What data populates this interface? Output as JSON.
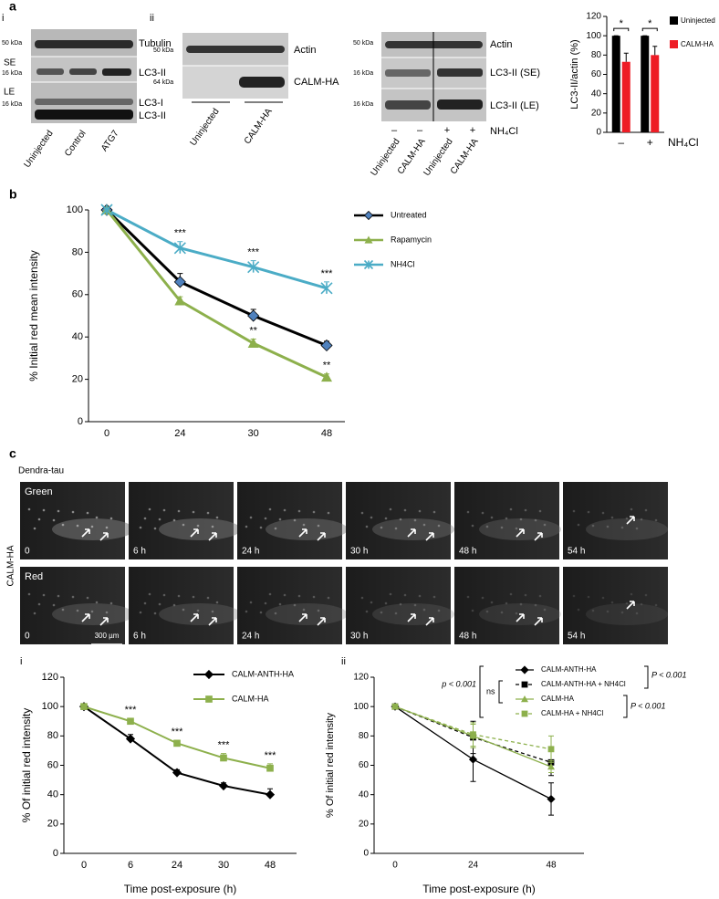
{
  "panel_labels": [
    "a",
    "b",
    "c"
  ],
  "blots": [
    {
      "label": "i",
      "kda": [
        "50 kDa",
        "16 kDa",
        "16 kDa"
      ],
      "side_labels": [
        "SE",
        "LE"
      ],
      "band_labels": [
        "Tubulin",
        "LC3-II",
        "LC3-I",
        "LC3-II"
      ],
      "lane_labels": [
        "Uninjected",
        "Control",
        "ATG7"
      ]
    },
    {
      "label": "ii",
      "kda": [
        "50 kDa",
        "64 kDa"
      ],
      "band_labels": [
        "Actin",
        "CALM-HA"
      ],
      "group_labels": [
        "Uninjected",
        "CALM-HA"
      ]
    },
    {
      "kda": [
        "50 kDa",
        "16 kDa",
        "16 kDa"
      ],
      "band_labels": [
        "Actin",
        "LC3-II (SE)",
        "LC3-II (LE)"
      ],
      "treatment": [
        "–",
        "–",
        "+",
        "+"
      ],
      "treatment_label": "NH₄Cl",
      "lane_labels": [
        "Uninjected",
        "CALM-HA",
        "Uninjected",
        "CALM-HA"
      ]
    }
  ],
  "microscopy": {
    "title": "Dendra-tau",
    "side_label": "CALM-HA",
    "rows": [
      "Green",
      "Red"
    ],
    "times": [
      "0",
      "6 h",
      "24 h",
      "30 h",
      "48 h",
      "54 h"
    ],
    "scale_bar": "300 µm"
  },
  "chart_data": [
    {
      "type": "bar",
      "ylabel": "LC3-II/actin (%)",
      "xlabel": "NH₄Cl",
      "categories": [
        "–",
        "+"
      ],
      "series": [
        {
          "name": "Uninjected",
          "color": "#000000",
          "values": [
            100,
            100
          ],
          "errors": [
            0,
            0
          ]
        },
        {
          "name": "CALM-HA",
          "color": "#ee1c25",
          "values": [
            73,
            80
          ],
          "errors": [
            9,
            9
          ]
        }
      ],
      "significance": [
        "*",
        "*"
      ],
      "ylim": [
        0,
        120
      ],
      "yticks": [
        0,
        20,
        40,
        60,
        80,
        100,
        120
      ],
      "legend": "right"
    },
    {
      "type": "line",
      "ylabel": "% Initial red mean intensity",
      "categories": [
        "0",
        "24",
        "30",
        "48"
      ],
      "error_direction": "up",
      "series": [
        {
          "name": "Untreated",
          "color": "#000000",
          "marker": "diamond",
          "marker_color": "#4f81bd",
          "values": [
            100,
            66,
            50,
            36
          ],
          "errors": [
            0,
            4,
            3,
            2
          ],
          "significance": [
            null,
            null,
            null,
            null
          ]
        },
        {
          "name": "Rapamycin",
          "color": "#8db04c",
          "marker": "triangle",
          "marker_color": "#8db04c",
          "values": [
            100,
            57,
            37,
            21
          ],
          "errors": [
            0,
            2,
            2,
            1.5
          ],
          "significance": [
            null,
            null,
            "**",
            "**"
          ]
        },
        {
          "name": "NH4Cl",
          "color": "#4bacc6",
          "marker": "x",
          "marker_color": "#4bacc6",
          "values": [
            100,
            82,
            73,
            63
          ],
          "errors": [
            0,
            3,
            3,
            3
          ],
          "significance": [
            null,
            "***",
            "***",
            "***"
          ]
        }
      ],
      "ylim": [
        0,
        100
      ],
      "yticks": [
        0,
        20,
        40,
        60,
        80,
        100
      ],
      "legend": "right"
    },
    {
      "type": "line",
      "label": "i",
      "ylabel": "% Of initial red intensity",
      "xlabel": "Time post-exposure (h)",
      "categories": [
        "0",
        "6",
        "24",
        "30",
        "48"
      ],
      "error_direction": "up",
      "series": [
        {
          "name": "CALM-ANTH-HA",
          "color": "#000000",
          "marker": "diamond",
          "marker_color": "#000000",
          "values": [
            100,
            78,
            55,
            46,
            40
          ],
          "errors": [
            0,
            3,
            2,
            2,
            4
          ],
          "significance": [
            null,
            null,
            null,
            null,
            null
          ]
        },
        {
          "name": "CALM-HA",
          "color": "#8db04c",
          "marker": "square",
          "marker_color": "#8db04c",
          "values": [
            100,
            90,
            75,
            65,
            58
          ],
          "errors": [
            0,
            2,
            2,
            3,
            3
          ],
          "significance": [
            null,
            "***",
            "***",
            "***",
            "***"
          ]
        }
      ],
      "ylim": [
        0,
        120
      ],
      "yticks": [
        0,
        20,
        40,
        60,
        80,
        100,
        120
      ],
      "legend": "upper right"
    },
    {
      "type": "line",
      "label": "ii",
      "ylabel": "% Of initial red intensity",
      "xlabel": "Time post-exposure (h)",
      "categories": [
        "0",
        "24",
        "48"
      ],
      "error_direction": "both",
      "series": [
        {
          "name": "CALM-ANTH-HA",
          "color": "#000000",
          "marker": "diamond",
          "marker_color": "#000000",
          "dashed": false,
          "values": [
            100,
            64,
            37
          ],
          "errors": [
            0,
            15,
            11
          ]
        },
        {
          "name": "CALM-ANTH-HA + NH4Cl",
          "color": "#000000",
          "marker": "square",
          "marker_color": "#000000",
          "dashed": true,
          "values": [
            100,
            79,
            62
          ],
          "errors": [
            0,
            11,
            9
          ]
        },
        {
          "name": "CALM-HA",
          "color": "#8db04c",
          "marker": "triangle",
          "marker_color": "#8db04c",
          "dashed": false,
          "values": [
            100,
            80,
            59
          ],
          "errors": [
            0,
            8,
            4
          ]
        },
        {
          "name": "CALM-HA + NH4Cl",
          "color": "#8db04c",
          "marker": "square",
          "marker_color": "#8db04c",
          "dashed": true,
          "values": [
            100,
            81,
            71
          ],
          "errors": [
            0,
            8,
            9
          ]
        }
      ],
      "legend_annotations": [
        "P < 0.001",
        "p < 0.001",
        "ns",
        "P < 0.001"
      ],
      "ylim": [
        0,
        120
      ],
      "yticks": [
        0,
        20,
        40,
        60,
        80,
        100,
        120
      ],
      "legend": "upper right"
    }
  ]
}
